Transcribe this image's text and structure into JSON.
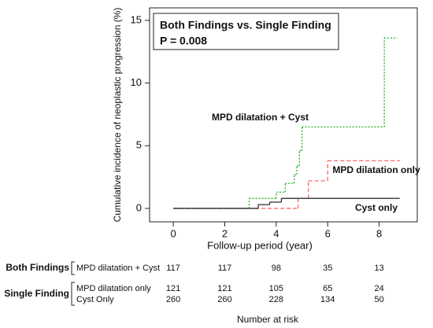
{
  "chart_data": {
    "type": "step",
    "title": "Both Findings vs. Single Finding",
    "subtitle": "P = 0.008",
    "subtitle_color": "#ff0000",
    "x_label": "Follow-up period (year)",
    "y_label": "Cumulative incidence of neoplastic progression (%)",
    "xlim": [
      -0.92,
      9.48
    ],
    "ylim": [
      -1.07,
      16
    ],
    "xticks": [
      0,
      2,
      4,
      6,
      8
    ],
    "yticks": [
      0,
      5,
      10,
      15
    ],
    "series": [
      {
        "name": "MPD dilatation + Cyst",
        "color": "#1fb01f",
        "dash": "2,2",
        "x": [
          0,
          2.95,
          4.0,
          4.35,
          4.7,
          4.8,
          4.9,
          5.0,
          8.2,
          8.7
        ],
        "values": [
          0,
          0.8,
          1.3,
          2.0,
          2.7,
          3.4,
          4.6,
          6.5,
          13.6,
          13.6
        ]
      },
      {
        "name": "MPD dilatation only",
        "color": "#ff6666",
        "dash": "5,3",
        "x": [
          0,
          4.85,
          5.25,
          6.0,
          8.8
        ],
        "values": [
          0,
          0.8,
          2.2,
          3.8,
          3.8
        ]
      },
      {
        "name": "Cyst only",
        "color": "#333333",
        "dash": "none",
        "x": [
          0,
          3.3,
          3.75,
          4.2,
          8.8
        ],
        "values": [
          0,
          0.3,
          0.5,
          0.8,
          0.8
        ]
      }
    ],
    "risk_table": {
      "title": "Number at risk",
      "groups": [
        {
          "name": "Both Findings",
          "rows": [
            {
              "label": "MPD dilatation + Cyst",
              "counts": [
                "117",
                "117",
                "98",
                "35",
                "13"
              ]
            }
          ]
        },
        {
          "name": "Single Finding",
          "rows": [
            {
              "label": "MPD dilatation only",
              "counts": [
                "121",
                "121",
                "105",
                "65",
                "24"
              ]
            },
            {
              "label": "Cyst Only",
              "counts": [
                "260",
                "260",
                "228",
                "134",
                "50"
              ]
            }
          ]
        }
      ]
    }
  }
}
